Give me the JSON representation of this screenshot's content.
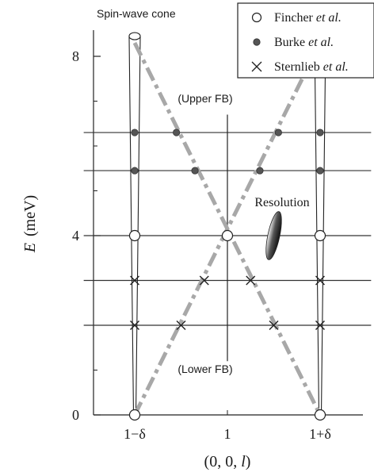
{
  "chart_data": {
    "type": "scatter",
    "xlabel_parts": [
      "(0, 0, ",
      "l",
      ")"
    ],
    "ylabel_parts": [
      "E",
      "(meV)"
    ],
    "x_ticks": [
      {
        "x": -1,
        "label": "1−δ"
      },
      {
        "x": 0,
        "label": "1"
      },
      {
        "x": 1,
        "label": "1+δ"
      }
    ],
    "y_ticks": [
      {
        "y": 0,
        "label": "0"
      },
      {
        "y": 4,
        "label": "4"
      },
      {
        "y": 8,
        "label": "8"
      }
    ],
    "xlim": [
      -1.55,
      1.55
    ],
    "ylim": [
      0,
      8.6
    ],
    "grid": false,
    "legend_position": "top-right",
    "legend": [
      {
        "marker": "open-circle",
        "label_parts": [
          "Fincher ",
          "et al."
        ]
      },
      {
        "marker": "filled-circle",
        "label_parts": [
          "Burke ",
          "et al."
        ]
      },
      {
        "marker": "cross",
        "label_parts": [
          "Sternlieb ",
          "et al."
        ]
      }
    ],
    "series": [
      {
        "marker": "open-circle",
        "points": [
          [
            -1,
            0
          ],
          [
            1,
            0
          ],
          [
            -1,
            4
          ],
          [
            0,
            4
          ],
          [
            1,
            4
          ]
        ]
      },
      {
        "marker": "filled-circle",
        "points": [
          [
            -1,
            6.3
          ],
          [
            -0.55,
            6.3
          ],
          [
            0.55,
            6.3
          ],
          [
            1,
            6.3
          ],
          [
            -1,
            5.45
          ],
          [
            -0.35,
            5.45
          ],
          [
            0.35,
            5.45
          ],
          [
            1,
            5.45
          ]
        ]
      },
      {
        "marker": "cross",
        "points": [
          [
            -1,
            3
          ],
          [
            -0.25,
            3
          ],
          [
            0.25,
            3
          ],
          [
            1,
            3
          ],
          [
            -1,
            2
          ],
          [
            -0.5,
            2
          ],
          [
            0.5,
            2
          ],
          [
            1,
            2
          ]
        ]
      }
    ],
    "horizontal_lines_y": [
      6.3,
      5.45,
      4,
      3,
      2
    ],
    "fb_dispersion_lines": [
      {
        "from": [
          -1,
          8.3
        ],
        "to": [
          1,
          0
        ]
      },
      {
        "from": [
          -1,
          0
        ],
        "to": [
          1,
          8.3
        ]
      }
    ],
    "vertical_center_line": {
      "x": 0,
      "y_from": 1.2,
      "y_to": 6.7
    },
    "spin_wave_cone": {
      "x_centers": [
        -1,
        1
      ],
      "y_bottom": 0,
      "y_top": 8.45,
      "top_halfwidth": 0.06
    },
    "resolution_ellipse": {
      "center": [
        0.5,
        4.0
      ],
      "color": "#333333"
    },
    "annotations": {
      "spin_wave_cone": "Spin-wave cone",
      "upper_fb": "(Upper FB)",
      "lower_fb": "(Lower FB)",
      "resolution": "Resolution"
    }
  }
}
